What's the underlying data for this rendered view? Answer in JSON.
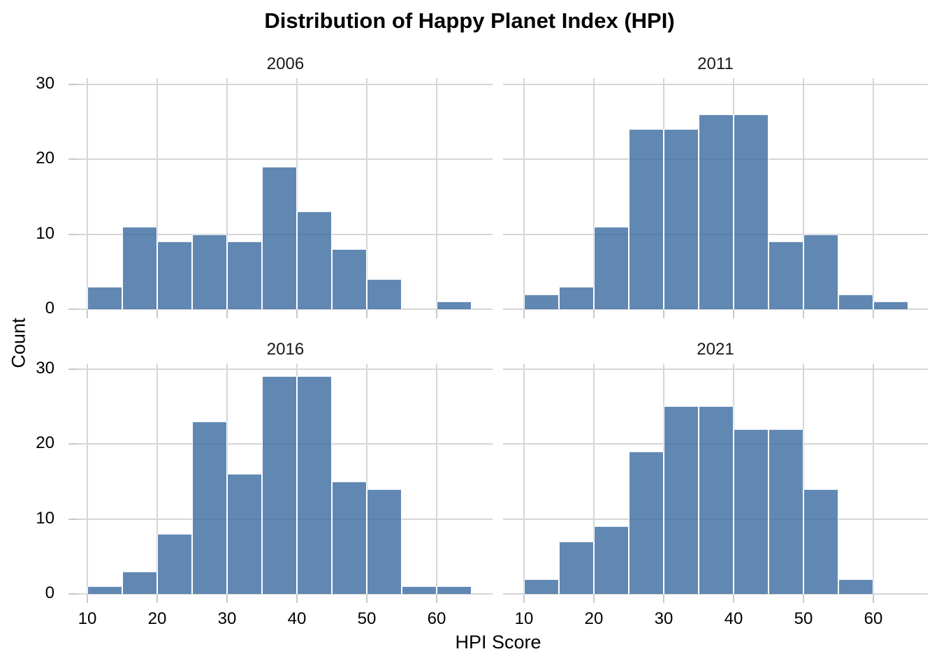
{
  "title": "Distribution of Happy Planet Index (HPI)",
  "axis": {
    "x_label": "HPI Score",
    "y_label": "Count"
  },
  "colors": {
    "bar_fill": "rgba(57,106,160,0.8)",
    "gridline": "#d6d6d6",
    "tick_mark": "#c9c9c9",
    "background": "#ffffff",
    "text": "#000000"
  },
  "chart_data": {
    "type": "bar",
    "subtype": "faceted-histogram",
    "title": "Distribution of Happy Planet Index (HPI)",
    "xlabel": "HPI Score",
    "ylabel": "Count",
    "bin_width": 5,
    "bin_edges": [
      10,
      15,
      20,
      25,
      30,
      35,
      40,
      45,
      50,
      55,
      60,
      65
    ],
    "x_ticks": [
      "10",
      "20",
      "30",
      "40",
      "50",
      "60"
    ],
    "y_ticks": [
      "0",
      "10",
      "20",
      "30"
    ],
    "xlim": [
      8.7,
      68.8
    ],
    "ylim": [
      0,
      30.8
    ],
    "grid": true,
    "legend": false,
    "facets": [
      {
        "label": "2006",
        "counts": [
          3,
          11,
          9,
          10,
          9,
          19,
          13,
          8,
          4,
          0,
          1
        ]
      },
      {
        "label": "2011",
        "counts": [
          2,
          3,
          11,
          24,
          24,
          26,
          26,
          9,
          10,
          2,
          1
        ]
      },
      {
        "label": "2016",
        "counts": [
          1,
          3,
          8,
          23,
          16,
          29,
          29,
          15,
          14,
          1,
          1
        ]
      },
      {
        "label": "2021",
        "counts": [
          2,
          7,
          9,
          19,
          25,
          25,
          22,
          22,
          14,
          2,
          0
        ]
      }
    ]
  }
}
